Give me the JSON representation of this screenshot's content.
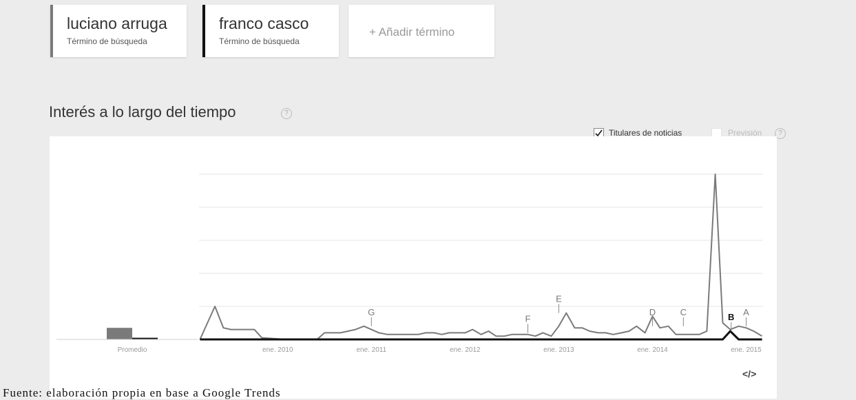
{
  "terms": [
    {
      "name": "luciano arruga",
      "subtitle": "Término de búsqueda",
      "color": "#7a7a7a"
    },
    {
      "name": "franco casco",
      "subtitle": "Término de búsqueda",
      "color": "#111111"
    }
  ],
  "add_term_label": "+ Añadir término",
  "section_title": "Interés a lo largo del tiempo",
  "help_glyph": "?",
  "toolbar": {
    "news_label": "Titulares de noticias",
    "news_checked": true,
    "forecast_label": "Previsión",
    "forecast_checked": false
  },
  "embed_label": "</>",
  "source_note": "Fuente: elaboración propia en base a Google Trends",
  "chart_data": {
    "type": "line",
    "title": "Interés a lo largo del tiempo",
    "ylim": [
      0,
      100
    ],
    "grid": true,
    "x_tick_labels": [
      "ene. 2010",
      "ene. 2011",
      "ene. 2012",
      "ene. 2013",
      "ene. 2014",
      "ene. 2015"
    ],
    "x_tick_dates": [
      2010.0,
      2011.0,
      2012.0,
      2013.0,
      2014.0,
      2015.0
    ],
    "x_range": [
      2009.16,
      2015.18
    ],
    "average": {
      "label": "Promedio",
      "values": [
        7,
        1
      ]
    },
    "series": [
      {
        "name": "luciano arruga",
        "color": "#7a7a7a",
        "x": [
          2009.17,
          2009.33,
          2009.42,
          2009.5,
          2009.67,
          2009.75,
          2009.83,
          2010.08,
          2010.42,
          2010.5,
          2010.67,
          2010.83,
          2010.92,
          2011.0,
          2011.08,
          2011.17,
          2011.25,
          2011.5,
          2011.58,
          2011.67,
          2011.75,
          2011.83,
          2012.0,
          2012.08,
          2012.17,
          2012.25,
          2012.33,
          2012.42,
          2012.5,
          2012.58,
          2012.67,
          2012.75,
          2012.83,
          2012.92,
          2013.0,
          2013.08,
          2013.17,
          2013.25,
          2013.33,
          2013.42,
          2013.5,
          2013.58,
          2013.67,
          2013.75,
          2013.83,
          2013.92,
          2014.0,
          2014.08,
          2014.17,
          2014.25,
          2014.33,
          2014.42,
          2014.5,
          2014.58,
          2014.67,
          2014.75,
          2014.83,
          2014.92,
          2015.0,
          2015.08,
          2015.17
        ],
        "values": [
          0,
          20,
          7,
          6,
          6,
          6,
          1,
          0,
          0,
          4,
          4,
          6,
          8,
          6,
          4,
          3,
          3,
          3,
          4,
          4,
          3,
          4,
          4,
          6,
          3,
          5,
          2,
          2,
          3,
          3,
          3,
          2,
          4,
          2,
          8,
          16,
          7,
          7,
          5,
          4,
          4,
          3,
          4,
          5,
          8,
          4,
          14,
          7,
          8,
          3,
          3,
          3,
          3,
          5,
          100,
          10,
          6,
          8,
          7,
          5,
          2
        ]
      },
      {
        "name": "franco casco",
        "color": "#111111",
        "x": [
          2009.17,
          2014.75,
          2014.83,
          2014.92,
          2015.17
        ],
        "values": [
          0,
          0,
          5,
          0,
          0
        ]
      }
    ],
    "annotations": [
      {
        "label": "G",
        "x": 2011.0,
        "y": 8
      },
      {
        "label": "F",
        "x": 2012.67,
        "y": 4
      },
      {
        "label": "E",
        "x": 2013.0,
        "y": 16
      },
      {
        "label": "D",
        "x": 2014.0,
        "y": 8
      },
      {
        "label": "C",
        "x": 2014.33,
        "y": 8
      },
      {
        "label": "B",
        "x": 2014.84,
        "y": 5
      },
      {
        "label": "A",
        "x": 2015.0,
        "y": 8
      }
    ]
  }
}
